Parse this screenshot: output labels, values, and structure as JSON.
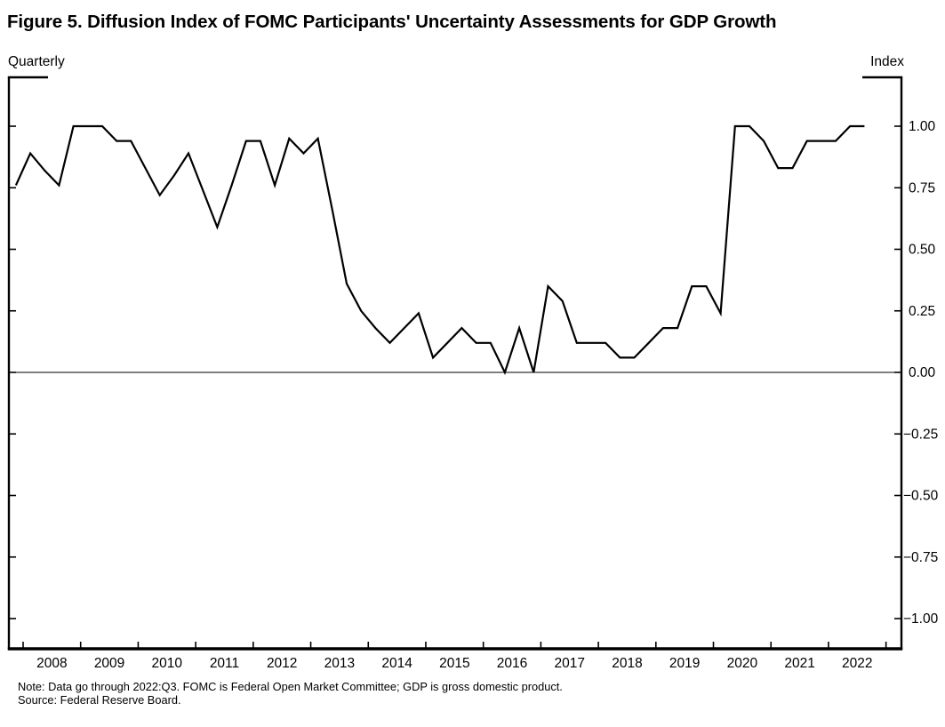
{
  "title": "Figure 5. Diffusion Index of FOMC Participants' Uncertainty Assessments for GDP Growth",
  "frequency_label": "Quarterly",
  "unit_label": "Index",
  "note": "Note: Data go through 2022:Q3. FOMC is Federal Open Market Committee; GDP is gross domestic product.",
  "source": "Source: Federal Reserve Board.",
  "chart_data": {
    "type": "line",
    "title": "Diffusion Index of FOMC Participants' Uncertainty Assessments for GDP Growth",
    "xlabel": "Quarterly",
    "ylabel": "Index",
    "legend": "none",
    "grid": false,
    "line_color": "#000000",
    "background_color": "#ffffff",
    "ylim": [
      -1.12,
      1.2
    ],
    "yticks": [
      1.0,
      0.75,
      0.5,
      0.25,
      0.0,
      -0.25,
      -0.5,
      -0.75,
      -1.0
    ],
    "ytick_labels": [
      "1.00",
      "0.75",
      "0.50",
      "0.25",
      "0.00",
      "−0.25",
      "−0.50",
      "−0.75",
      "−1.00"
    ],
    "xtick_years": [
      "2008",
      "2009",
      "2010",
      "2011",
      "2012",
      "2013",
      "2014",
      "2015",
      "2016",
      "2017",
      "2018",
      "2019",
      "2020",
      "2021",
      "2022"
    ],
    "zero_line": true,
    "x": [
      "2007:Q4",
      "2008:Q1",
      "2008:Q2",
      "2008:Q3",
      "2008:Q4",
      "2009:Q1",
      "2009:Q2",
      "2009:Q3",
      "2009:Q4",
      "2010:Q1",
      "2010:Q2",
      "2010:Q3",
      "2010:Q4",
      "2011:Q1",
      "2011:Q2",
      "2011:Q3",
      "2011:Q4",
      "2012:Q1",
      "2012:Q2",
      "2012:Q3",
      "2012:Q4",
      "2013:Q1",
      "2013:Q2",
      "2013:Q3",
      "2013:Q4",
      "2014:Q1",
      "2014:Q2",
      "2014:Q3",
      "2014:Q4",
      "2015:Q1",
      "2015:Q2",
      "2015:Q3",
      "2015:Q4",
      "2016:Q1",
      "2016:Q2",
      "2016:Q3",
      "2016:Q4",
      "2017:Q1",
      "2017:Q2",
      "2017:Q3",
      "2017:Q4",
      "2018:Q1",
      "2018:Q2",
      "2018:Q3",
      "2018:Q4",
      "2019:Q1",
      "2019:Q2",
      "2019:Q3",
      "2019:Q4",
      "2020:Q1",
      "2020:Q2",
      "2020:Q3",
      "2020:Q4",
      "2021:Q1",
      "2021:Q2",
      "2021:Q3",
      "2021:Q4",
      "2022:Q1",
      "2022:Q2",
      "2022:Q3"
    ],
    "values": [
      0.76,
      0.89,
      0.82,
      0.76,
      1.0,
      1.0,
      1.0,
      0.94,
      0.94,
      0.83,
      0.72,
      0.8,
      0.89,
      0.74,
      0.59,
      0.76,
      0.94,
      0.94,
      0.76,
      0.95,
      0.89,
      0.95,
      0.66,
      0.36,
      0.25,
      0.18,
      0.12,
      0.18,
      0.24,
      0.06,
      0.12,
      0.18,
      0.12,
      0.12,
      0.0,
      0.18,
      0.0,
      0.35,
      0.29,
      0.12,
      0.12,
      0.12,
      0.06,
      0.06,
      0.12,
      0.18,
      0.18,
      0.35,
      0.35,
      0.24,
      1.0,
      1.0,
      0.94,
      0.83,
      0.83,
      0.94,
      0.94,
      0.94,
      1.0,
      1.0
    ]
  }
}
